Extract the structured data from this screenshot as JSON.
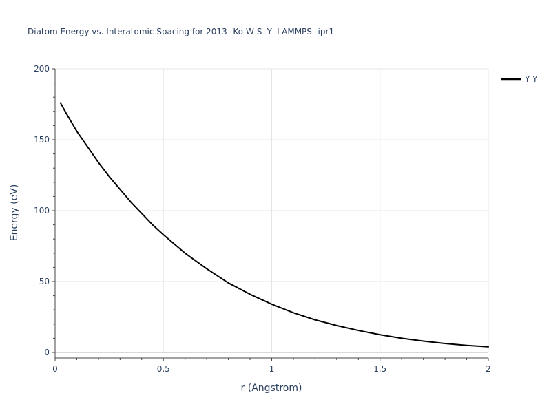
{
  "chart_data": {
    "type": "line",
    "title": "Diatom Energy vs. Interatomic Spacing for 2013--Ko-W-S--Y--LAMMPS--ipr1",
    "xlabel": "r (Angstrom)",
    "ylabel": "Energy (eV)",
    "xlim": [
      0,
      2
    ],
    "ylim": [
      0,
      200
    ],
    "x_ticks": [
      0,
      0.5,
      1,
      1.5,
      2
    ],
    "x_tick_labels": [
      "0",
      "0.5",
      "1",
      "1.5",
      "2"
    ],
    "y_ticks": [
      0,
      50,
      100,
      150,
      200
    ],
    "y_tick_labels": [
      "0",
      "50",
      "100",
      "150",
      "200"
    ],
    "grid": true,
    "legend_position": "top-right",
    "series": [
      {
        "name": "Y Y",
        "color": "#000000",
        "x": [
          0.025,
          0.05,
          0.1,
          0.15,
          0.2,
          0.25,
          0.3,
          0.35,
          0.4,
          0.45,
          0.5,
          0.6,
          0.7,
          0.8,
          0.9,
          1.0,
          1.1,
          1.2,
          1.3,
          1.4,
          1.5,
          1.6,
          1.7,
          1.8,
          1.9,
          2.0
        ],
        "y": [
          176,
          169,
          156,
          145,
          134,
          124,
          115,
          106,
          98,
          90,
          83,
          70,
          59,
          49,
          41,
          34,
          28,
          23,
          19,
          15.5,
          12.5,
          10,
          8,
          6.3,
          5,
          4
        ]
      }
    ]
  }
}
